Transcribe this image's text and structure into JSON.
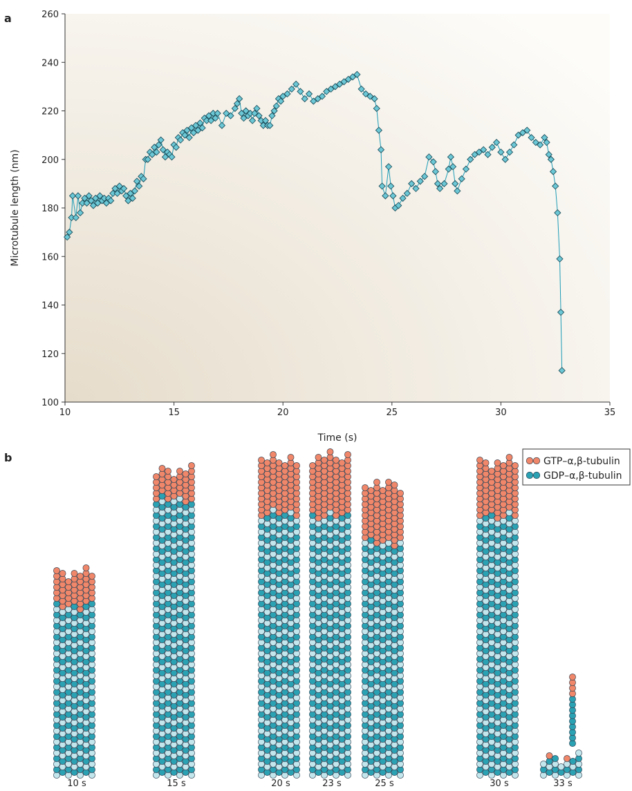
{
  "panel_labels": [
    "a",
    "b"
  ],
  "chart_data": {
    "type": "scatter-line",
    "x_label": "Time (s)",
    "y_label": "Microtubule length (nm)",
    "xlim": [
      10,
      35
    ],
    "xticks": [
      10,
      15,
      20,
      25,
      30,
      35
    ],
    "ylim": [
      100,
      260
    ],
    "yticks": [
      100,
      120,
      140,
      160,
      180,
      200,
      220,
      240,
      260
    ],
    "x": [
      10.1,
      10.2,
      10.3,
      10.35,
      10.5,
      10.6,
      10.7,
      10.8,
      10.9,
      11.0,
      11.1,
      11.2,
      11.3,
      11.4,
      11.5,
      11.6,
      11.7,
      11.8,
      11.9,
      12.0,
      12.1,
      12.2,
      12.3,
      12.4,
      12.5,
      12.6,
      12.7,
      12.8,
      12.9,
      13.0,
      13.1,
      13.2,
      13.3,
      13.4,
      13.5,
      13.6,
      13.7,
      13.8,
      13.9,
      14.0,
      14.1,
      14.2,
      14.3,
      14.4,
      14.5,
      14.6,
      14.7,
      14.8,
      14.9,
      15.0,
      15.1,
      15.2,
      15.3,
      15.4,
      15.5,
      15.6,
      15.7,
      15.8,
      15.9,
      16.0,
      16.1,
      16.2,
      16.3,
      16.4,
      16.5,
      16.6,
      16.7,
      16.8,
      16.9,
      17.0,
      17.2,
      17.4,
      17.6,
      17.8,
      17.9,
      18.0,
      18.1,
      18.2,
      18.3,
      18.4,
      18.5,
      18.6,
      18.7,
      18.8,
      18.9,
      19.0,
      19.1,
      19.2,
      19.3,
      19.4,
      19.5,
      19.6,
      19.7,
      19.8,
      19.9,
      20.0,
      20.2,
      20.4,
      20.6,
      20.8,
      21.0,
      21.2,
      21.4,
      21.6,
      21.8,
      22.0,
      22.2,
      22.4,
      22.6,
      22.8,
      23.0,
      23.2,
      23.4,
      23.6,
      23.8,
      24.0,
      24.2,
      24.3,
      24.4,
      24.5,
      24.55,
      24.7,
      24.85,
      24.95,
      25.05,
      25.15,
      25.3,
      25.5,
      25.7,
      25.9,
      26.1,
      26.3,
      26.5,
      26.7,
      26.9,
      27.0,
      27.1,
      27.2,
      27.4,
      27.6,
      27.7,
      27.8,
      27.9,
      28.0,
      28.2,
      28.4,
      28.6,
      28.8,
      29.0,
      29.2,
      29.4,
      29.6,
      29.8,
      30.0,
      30.2,
      30.4,
      30.6,
      30.8,
      31.0,
      31.2,
      31.4,
      31.6,
      31.8,
      32.0,
      32.1,
      32.2,
      32.3,
      32.4,
      32.5,
      32.6,
      32.7,
      32.75,
      32.8
    ],
    "series": [
      {
        "color": "#6cc8d6",
        "line_color": "#1b9bb6",
        "values": [
          168,
          170,
          176,
          185,
          176,
          185,
          178,
          182,
          184,
          182,
          185,
          183,
          181,
          184,
          182,
          185,
          183,
          184,
          182,
          184,
          183,
          186,
          188,
          186,
          189,
          187,
          188,
          185,
          183,
          186,
          184,
          187,
          191,
          189,
          193,
          192,
          200,
          200,
          203,
          202,
          205,
          203,
          206,
          208,
          204,
          201,
          203,
          202,
          201,
          206,
          205,
          209,
          208,
          211,
          210,
          212,
          209,
          213,
          211,
          214,
          212,
          215,
          213,
          217,
          216,
          218,
          216,
          219,
          217,
          219,
          214,
          219,
          218,
          221,
          223,
          225,
          219,
          217,
          220,
          218,
          219,
          216,
          219,
          221,
          218,
          216,
          214,
          216,
          214,
          214,
          218,
          220,
          222,
          225,
          224,
          226,
          227,
          229,
          231,
          228,
          225,
          227,
          224,
          225,
          226,
          228,
          229,
          230,
          231,
          232,
          233,
          234,
          235,
          229,
          227,
          226,
          225,
          221,
          212,
          204,
          189,
          185,
          197,
          189,
          185,
          180,
          181,
          184,
          186,
          190,
          188,
          191,
          193,
          201,
          199,
          195,
          190,
          188,
          190,
          196,
          201,
          197,
          190,
          187,
          192,
          196,
          200,
          202,
          203,
          204,
          202,
          205,
          207,
          203,
          200,
          203,
          206,
          210,
          211,
          212,
          209,
          207,
          206,
          209,
          207,
          202,
          200,
          195,
          189,
          178,
          159,
          137,
          113
        ]
      }
    ]
  },
  "diagram": {
    "legend": [
      "GTP–α,β-tubulin",
      "GDP–α,β-tubulin"
    ],
    "time_labels": [
      "10 s",
      "15 s",
      "20 s",
      "23 s",
      "25 s",
      "30 s",
      "33 s"
    ]
  }
}
